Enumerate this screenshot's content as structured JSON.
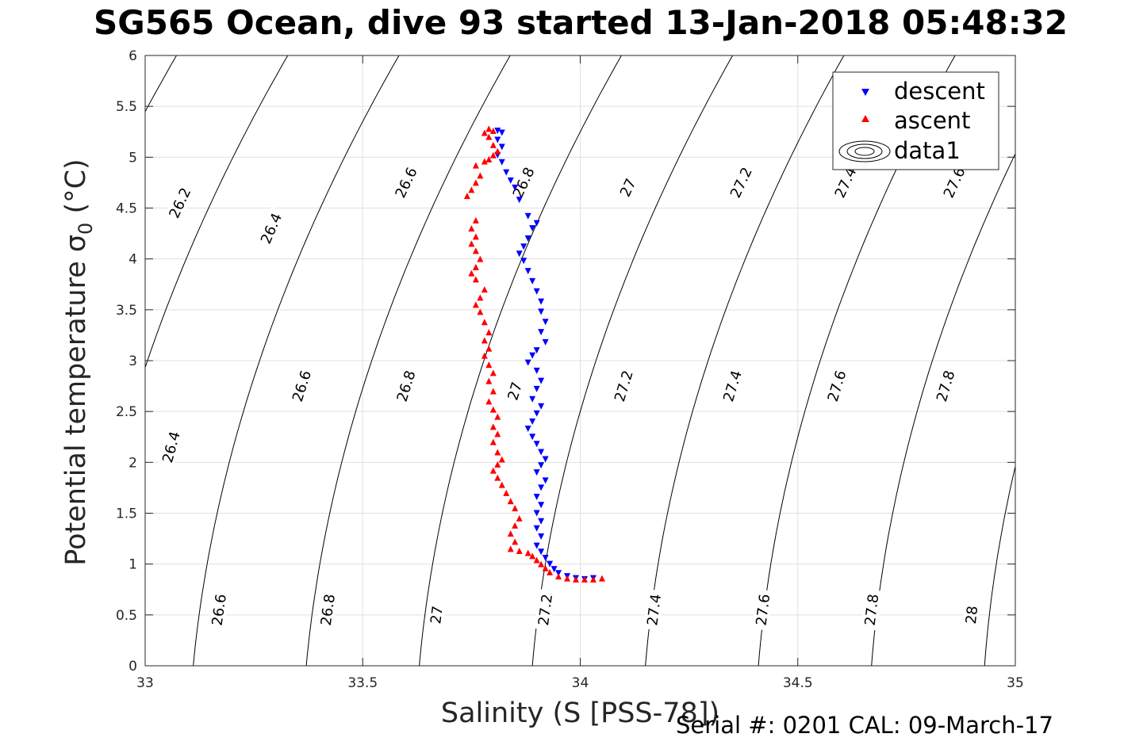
{
  "chart_data": {
    "type": "scatter",
    "title": "SG565 Ocean, dive 93 started 13-Jan-2018 05:48:32",
    "xlabel": "Salinity (S [PSS-78])",
    "ylabel_main": "Potential temperature ",
    "ylabel_symbol": "σ",
    "ylabel_subscript": "0",
    "ylabel_unit": " (°C)",
    "xlim": [
      33,
      35
    ],
    "ylim": [
      0,
      6
    ],
    "xticks": [
      33,
      33.5,
      34,
      34.5,
      35
    ],
    "xtick_labels": [
      "33",
      "33.5",
      "34",
      "34.5",
      "35"
    ],
    "yticks": [
      0,
      0.5,
      1,
      1.5,
      2,
      2.5,
      3,
      3.5,
      4,
      4.5,
      5,
      5.5,
      6
    ],
    "ytick_labels": [
      "0",
      "0.5",
      "1",
      "1.5",
      "2",
      "2.5",
      "3",
      "3.5",
      "4",
      "4.5",
      "5",
      "5.5",
      "6"
    ],
    "grid": true,
    "legend_position": "top-right",
    "series": [
      {
        "name": "descent",
        "marker": "triangle-down",
        "color": "#0000ff",
        "points": [
          [
            33.81,
            5.26
          ],
          [
            33.82,
            5.24
          ],
          [
            33.81,
            5.17
          ],
          [
            33.82,
            5.1
          ],
          [
            33.81,
            5.02
          ],
          [
            33.82,
            4.95
          ],
          [
            33.83,
            4.85
          ],
          [
            33.84,
            4.77
          ],
          [
            33.85,
            4.7
          ],
          [
            33.86,
            4.58
          ],
          [
            33.88,
            4.42
          ],
          [
            33.9,
            4.35
          ],
          [
            33.89,
            4.3
          ],
          [
            33.88,
            4.2
          ],
          [
            33.87,
            4.12
          ],
          [
            33.86,
            4.05
          ],
          [
            33.87,
            3.98
          ],
          [
            33.88,
            3.88
          ],
          [
            33.89,
            3.78
          ],
          [
            33.9,
            3.68
          ],
          [
            33.91,
            3.58
          ],
          [
            33.91,
            3.48
          ],
          [
            33.92,
            3.38
          ],
          [
            33.91,
            3.28
          ],
          [
            33.92,
            3.18
          ],
          [
            33.9,
            3.1
          ],
          [
            33.89,
            3.05
          ],
          [
            33.88,
            2.98
          ],
          [
            33.9,
            2.9
          ],
          [
            33.91,
            2.8
          ],
          [
            33.9,
            2.72
          ],
          [
            33.89,
            2.62
          ],
          [
            33.91,
            2.55
          ],
          [
            33.9,
            2.48
          ],
          [
            33.89,
            2.4
          ],
          [
            33.88,
            2.33
          ],
          [
            33.89,
            2.25
          ],
          [
            33.9,
            2.18
          ],
          [
            33.91,
            2.1
          ],
          [
            33.92,
            2.03
          ],
          [
            33.91,
            1.97
          ],
          [
            33.9,
            1.9
          ],
          [
            33.92,
            1.82
          ],
          [
            33.91,
            1.75
          ],
          [
            33.9,
            1.66
          ],
          [
            33.91,
            1.58
          ],
          [
            33.9,
            1.5
          ],
          [
            33.91,
            1.42
          ],
          [
            33.9,
            1.35
          ],
          [
            33.91,
            1.27
          ],
          [
            33.9,
            1.18
          ],
          [
            33.91,
            1.12
          ],
          [
            33.92,
            1.06
          ],
          [
            33.93,
            1.0
          ],
          [
            33.94,
            0.95
          ],
          [
            33.95,
            0.91
          ],
          [
            33.97,
            0.88
          ],
          [
            33.99,
            0.86
          ],
          [
            34.01,
            0.85
          ],
          [
            34.03,
            0.86
          ]
        ]
      },
      {
        "name": "ascent",
        "marker": "triangle-up",
        "color": "#ff0000",
        "points": [
          [
            34.05,
            0.86
          ],
          [
            34.03,
            0.85
          ],
          [
            34.01,
            0.85
          ],
          [
            33.99,
            0.85
          ],
          [
            33.97,
            0.86
          ],
          [
            33.95,
            0.88
          ],
          [
            33.93,
            0.92
          ],
          [
            33.92,
            0.96
          ],
          [
            33.91,
            1.0
          ],
          [
            33.9,
            1.04
          ],
          [
            33.89,
            1.08
          ],
          [
            33.88,
            1.11
          ],
          [
            33.86,
            1.13
          ],
          [
            33.84,
            1.15
          ],
          [
            33.85,
            1.22
          ],
          [
            33.84,
            1.3
          ],
          [
            33.85,
            1.38
          ],
          [
            33.86,
            1.45
          ],
          [
            33.85,
            1.55
          ],
          [
            33.84,
            1.62
          ],
          [
            33.83,
            1.7
          ],
          [
            33.82,
            1.78
          ],
          [
            33.81,
            1.85
          ],
          [
            33.8,
            1.92
          ],
          [
            33.81,
            1.98
          ],
          [
            33.82,
            2.03
          ],
          [
            33.81,
            2.1
          ],
          [
            33.8,
            2.2
          ],
          [
            33.81,
            2.28
          ],
          [
            33.8,
            2.35
          ],
          [
            33.81,
            2.45
          ],
          [
            33.8,
            2.52
          ],
          [
            33.79,
            2.6
          ],
          [
            33.8,
            2.7
          ],
          [
            33.79,
            2.8
          ],
          [
            33.8,
            2.88
          ],
          [
            33.79,
            2.96
          ],
          [
            33.78,
            3.05
          ],
          [
            33.79,
            3.12
          ],
          [
            33.78,
            3.2
          ],
          [
            33.79,
            3.28
          ],
          [
            33.78,
            3.38
          ],
          [
            33.77,
            3.48
          ],
          [
            33.76,
            3.55
          ],
          [
            33.77,
            3.62
          ],
          [
            33.78,
            3.7
          ],
          [
            33.76,
            3.8
          ],
          [
            33.75,
            3.86
          ],
          [
            33.76,
            3.92
          ],
          [
            33.77,
            4.0
          ],
          [
            33.76,
            4.08
          ],
          [
            33.75,
            4.15
          ],
          [
            33.76,
            4.22
          ],
          [
            33.75,
            4.3
          ],
          [
            33.76,
            4.38
          ],
          [
            33.74,
            4.62
          ],
          [
            33.75,
            4.68
          ],
          [
            33.76,
            4.75
          ],
          [
            33.77,
            4.82
          ],
          [
            33.76,
            4.92
          ],
          [
            33.78,
            4.96
          ],
          [
            33.79,
            4.98
          ],
          [
            33.8,
            5.02
          ],
          [
            33.81,
            5.06
          ],
          [
            33.8,
            5.12
          ],
          [
            33.79,
            5.2
          ],
          [
            33.78,
            5.24
          ],
          [
            33.79,
            5.28
          ],
          [
            33.8,
            5.26
          ]
        ]
      },
      {
        "name": "data1",
        "type": "contour",
        "level_step": 0.2,
        "labeled_levels": [
          {
            "text": "26.2",
            "s": 33.08,
            "t": 4.55
          },
          {
            "text": "26.4",
            "s": 33.29,
            "t": 4.3
          },
          {
            "text": "26.6",
            "s": 33.6,
            "t": 4.75
          },
          {
            "text": "26.8",
            "s": 33.87,
            "t": 4.75
          },
          {
            "text": "27",
            "s": 34.11,
            "t": 4.7
          },
          {
            "text": "27.2",
            "s": 34.37,
            "t": 4.75
          },
          {
            "text": "27.4",
            "s": 34.61,
            "t": 4.75
          },
          {
            "text": "27.6",
            "s": 34.86,
            "t": 4.75
          },
          {
            "text": "26.4",
            "s": 33.06,
            "t": 2.15
          },
          {
            "text": "26.6",
            "s": 33.36,
            "t": 2.75
          },
          {
            "text": "26.8",
            "s": 33.6,
            "t": 2.75
          },
          {
            "text": "27",
            "s": 33.85,
            "t": 2.7
          },
          {
            "text": "27.2",
            "s": 34.1,
            "t": 2.75
          },
          {
            "text": "27.4",
            "s": 34.35,
            "t": 2.75
          },
          {
            "text": "27.6",
            "s": 34.59,
            "t": 2.75
          },
          {
            "text": "27.8",
            "s": 34.84,
            "t": 2.75
          },
          {
            "text": "26.6",
            "s": 33.17,
            "t": 0.55
          },
          {
            "text": "26.8",
            "s": 33.42,
            "t": 0.55
          },
          {
            "text": "27",
            "s": 33.67,
            "t": 0.5
          },
          {
            "text": "27.2",
            "s": 33.92,
            "t": 0.55
          },
          {
            "text": "27.4",
            "s": 34.17,
            "t": 0.55
          },
          {
            "text": "27.6",
            "s": 34.42,
            "t": 0.55
          },
          {
            "text": "27.8",
            "s": 34.67,
            "t": 0.55
          },
          {
            "text": "28",
            "s": 34.9,
            "t": 0.5
          }
        ]
      }
    ]
  },
  "footer": {
    "serial_text": "Serial #: 0201  CAL: 09-March-17"
  }
}
